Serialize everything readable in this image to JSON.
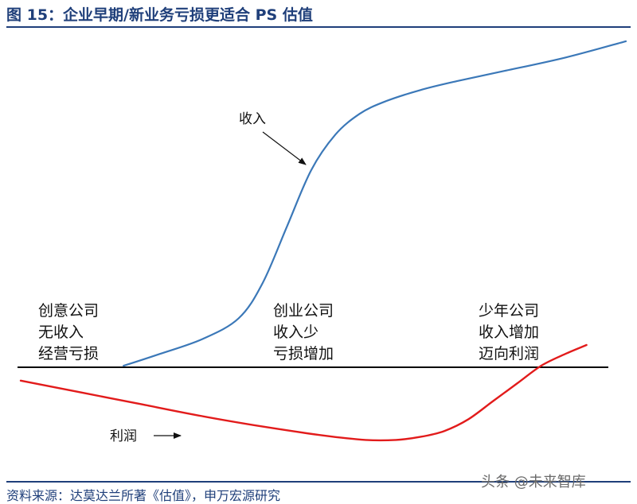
{
  "title": "图 15：企业早期/新业务亏损更适合 PS 估值",
  "source": "资料来源：达莫达兰所著《估值》，申万宏源研究",
  "watermark": "头条 @未来智库",
  "chart_data": {
    "type": "line",
    "title": "图 15：企业早期/新业务亏损更适合 PS 估值",
    "xlabel": "",
    "ylabel": "",
    "grid": false,
    "axis_visible": "x-axis line only, no ticks",
    "xlim": [
      0,
      100
    ],
    "ylim": [
      -30,
      110
    ],
    "series": [
      {
        "name": "收入",
        "color": "#3b78b8",
        "x": [
          17,
          23,
          30,
          36,
          40,
          44,
          48,
          52,
          56,
          60,
          66,
          72,
          80,
          90,
          100
        ],
        "y": [
          0,
          4,
          9,
          16,
          28,
          47,
          66,
          78,
          85,
          89,
          93,
          96,
          99.5,
          104,
          109.5
        ]
      },
      {
        "name": "利润",
        "color": "#e21b1b",
        "x": [
          0,
          10,
          20,
          30,
          40,
          50,
          57,
          62,
          66,
          70,
          74,
          78,
          82,
          86,
          90,
          93.5
        ],
        "y": [
          -5,
          -9,
          -13,
          -17,
          -20.5,
          -23.5,
          -25,
          -25,
          -24,
          -22,
          -18,
          -12,
          -6,
          0,
          4,
          7
        ]
      }
    ],
    "annotations": [
      {
        "label": "收入",
        "target_series": "收入"
      },
      {
        "label": "利润",
        "target_series": "利润"
      }
    ],
    "stages": [
      {
        "lines": [
          "创意公司",
          "无收入",
          "经营亏损"
        ]
      },
      {
        "lines": [
          "创业公司",
          "收入少",
          "亏损增加"
        ]
      },
      {
        "lines": [
          "少年公司",
          "收入增加",
          "迈向利润"
        ]
      }
    ]
  }
}
